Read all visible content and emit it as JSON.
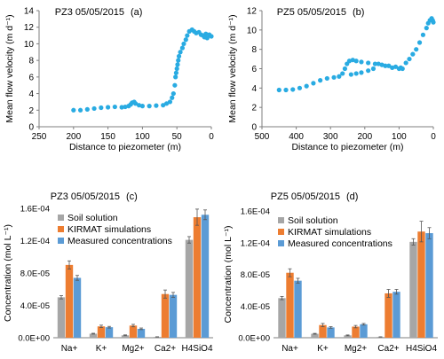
{
  "colors": {
    "scatter": "#29abe2",
    "soil": "#a6a6a6",
    "kirmat": "#ed7d31",
    "measured": "#5b9bd5",
    "axis": "#7f7f7f"
  },
  "chart_data": [
    {
      "type": "scatter",
      "title": "PZ3 05/05/2015",
      "panel_label": "(a)",
      "xlabel": "Distance to piezometer (m)",
      "ylabel": "Mean flow velocity (m d⁻¹)",
      "x_reversed": true,
      "xlim": [
        0,
        250
      ],
      "ylim": [
        0,
        14
      ],
      "x_ticks": [
        250,
        200,
        150,
        100,
        50,
        0
      ],
      "y_ticks": [
        0,
        2,
        4,
        6,
        8,
        10,
        12,
        14
      ],
      "grid": false,
      "points": [
        [
          200,
          2.0
        ],
        [
          190,
          2.0
        ],
        [
          180,
          2.1
        ],
        [
          170,
          2.2
        ],
        [
          160,
          2.3
        ],
        [
          150,
          2.35
        ],
        [
          140,
          2.4
        ],
        [
          130,
          2.35
        ],
        [
          125,
          2.4
        ],
        [
          120,
          2.5
        ],
        [
          117,
          2.7
        ],
        [
          115,
          2.9
        ],
        [
          112,
          3.0
        ],
        [
          110,
          2.8
        ],
        [
          105,
          2.6
        ],
        [
          100,
          2.5
        ],
        [
          90,
          2.5
        ],
        [
          80,
          2.55
        ],
        [
          70,
          2.6
        ],
        [
          65,
          2.8
        ],
        [
          60,
          3.0
        ],
        [
          57,
          3.5
        ],
        [
          55,
          4.0
        ],
        [
          53,
          5.0
        ],
        [
          52,
          6.0
        ],
        [
          51,
          6.5
        ],
        [
          50,
          7.0
        ],
        [
          49,
          7.5
        ],
        [
          48,
          8.0
        ],
        [
          47,
          8.5
        ],
        [
          45,
          9.0
        ],
        [
          42,
          9.5
        ],
        [
          40,
          10.0
        ],
        [
          37,
          10.5
        ],
        [
          35,
          11.0
        ],
        [
          32,
          11.5
        ],
        [
          28,
          11.7
        ],
        [
          25,
          11.5
        ],
        [
          22,
          11.3
        ],
        [
          18,
          11.4
        ],
        [
          15,
          11.1
        ],
        [
          12,
          11.0
        ],
        [
          10,
          10.8
        ],
        [
          8,
          11.2
        ],
        [
          6,
          10.7
        ],
        [
          3,
          11.1
        ],
        [
          0,
          10.9
        ]
      ]
    },
    {
      "type": "scatter",
      "title": "PZ5 05/05/2015",
      "panel_label": "(b)",
      "xlabel": "Distance to piezometer (m)",
      "ylabel": "Mean flow velocity (m d⁻¹)",
      "x_reversed": true,
      "xlim": [
        0,
        500
      ],
      "ylim": [
        0,
        12
      ],
      "x_ticks": [
        500,
        400,
        300,
        200,
        100,
        0
      ],
      "y_ticks": [
        0,
        2,
        4,
        6,
        8,
        10,
        12
      ],
      "grid": false,
      "points": [
        [
          450,
          3.8
        ],
        [
          430,
          3.8
        ],
        [
          410,
          3.85
        ],
        [
          390,
          4.0
        ],
        [
          370,
          4.2
        ],
        [
          350,
          4.5
        ],
        [
          330,
          4.8
        ],
        [
          310,
          5.0
        ],
        [
          290,
          5.1
        ],
        [
          275,
          5.2
        ],
        [
          265,
          5.5
        ],
        [
          258,
          6.0
        ],
        [
          252,
          6.5
        ],
        [
          245,
          6.8
        ],
        [
          235,
          6.9
        ],
        [
          225,
          6.8
        ],
        [
          210,
          6.7
        ],
        [
          190,
          6.6
        ],
        [
          170,
          6.5
        ],
        [
          150,
          6.4
        ],
        [
          130,
          6.3
        ],
        [
          110,
          6.2
        ],
        [
          95,
          6.1
        ],
        [
          90,
          6.0
        ],
        [
          100,
          6.0
        ],
        [
          120,
          6.1
        ],
        [
          140,
          6.3
        ],
        [
          160,
          6.5
        ],
        [
          175,
          6.0
        ],
        [
          190,
          5.8
        ],
        [
          210,
          5.6
        ],
        [
          225,
          5.5
        ],
        [
          240,
          5.4
        ],
        [
          80,
          6.6
        ],
        [
          70,
          7.0
        ],
        [
          60,
          7.5
        ],
        [
          50,
          8.0
        ],
        [
          40,
          8.7
        ],
        [
          30,
          9.5
        ],
        [
          20,
          10.2
        ],
        [
          15,
          10.7
        ],
        [
          10,
          11.0
        ],
        [
          5,
          11.2
        ],
        [
          2,
          11.0
        ],
        [
          0,
          10.8
        ]
      ]
    },
    {
      "type": "bar",
      "title": "PZ3 05/05/2015",
      "panel_label": "(c)",
      "ylabel": "Concentration (mol L⁻¹)",
      "categories": [
        "Na+",
        "K+",
        "Mg2+",
        "Ca2+",
        "H4SiO4"
      ],
      "ylim": [
        0,
        0.00016
      ],
      "y_ticks": [
        "0.0E+00",
        "4.0E-05",
        "8.0E-05",
        "1.2E-04",
        "1.6E-04"
      ],
      "legend": "top-left",
      "series": [
        {
          "name": "Soil solution",
          "values": [
            5e-05,
            5e-06,
            3e-06,
            1e-06,
            0.000121
          ],
          "errors": [
            2e-06,
            5e-07,
            5e-07,
            2e-07,
            4e-06
          ]
        },
        {
          "name": "KIRMAT simulations",
          "values": [
            9e-05,
            1.4e-05,
            1.5e-05,
            5.4e-05,
            0.000149
          ],
          "errors": [
            5e-06,
            1.5e-06,
            1.5e-06,
            5e-06,
            1e-05
          ]
        },
        {
          "name": "Measured concentrations",
          "values": [
            7.4e-05,
            1.3e-05,
            1.1e-05,
            5.3e-05,
            0.000152
          ],
          "errors": [
            3e-06,
            1e-06,
            1e-06,
            3e-06,
            6e-06
          ]
        }
      ]
    },
    {
      "type": "bar",
      "title": "PZ5 05/05/2015",
      "panel_label": "(d)",
      "ylabel": "Concentration (mol L⁻¹)",
      "categories": [
        "Na+",
        "K+",
        "Mg2+",
        "Ca2+",
        "H4SiO4"
      ],
      "ylim": [
        0,
        0.00016
      ],
      "y_ticks": [
        "0.0E+00",
        "4.0E-05",
        "8.0E-05",
        "1.2E-04",
        "1.6E-04"
      ],
      "legend": "top-left",
      "series": [
        {
          "name": "Soil solution",
          "values": [
            5e-05,
            5e-06,
            3e-06,
            1e-06,
            0.000121
          ],
          "errors": [
            2e-06,
            5e-07,
            5e-07,
            2e-07,
            4e-06
          ]
        },
        {
          "name": "KIRMAT simulations",
          "values": [
            8.2e-05,
            1.6e-05,
            1.4e-05,
            5.6e-05,
            0.000134
          ],
          "errors": [
            5e-06,
            2e-06,
            1.5e-06,
            5e-06,
            1.3e-05
          ]
        },
        {
          "name": "Measured concentrations",
          "values": [
            7.2e-05,
            1.3e-05,
            1.7e-05,
            5.8e-05,
            0.000132
          ],
          "errors": [
            3e-06,
            1e-06,
            1e-06,
            3e-06,
            7e-06
          ]
        }
      ]
    }
  ]
}
